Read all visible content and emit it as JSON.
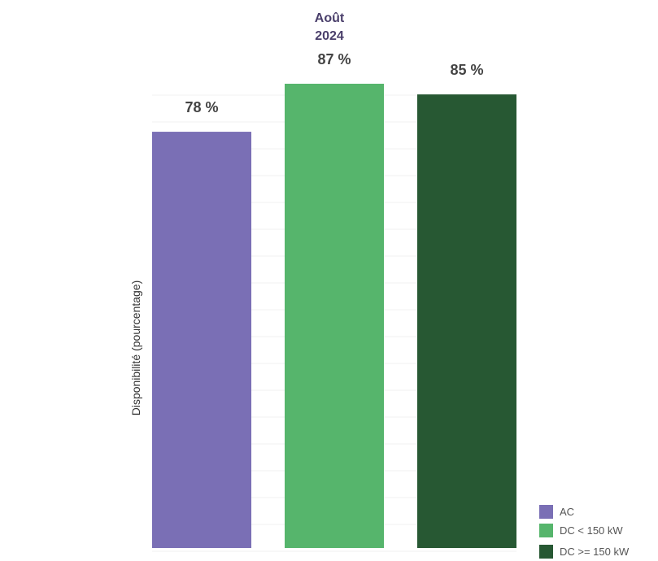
{
  "chart_data": {
    "type": "bar",
    "title_line1": "Août",
    "title_line2": "2024",
    "xlabel": "",
    "ylabel": "Disponibilité (pourcentage)",
    "ylim": [
      0,
      87
    ],
    "grid": "horizontal",
    "legend_position": "bottom-right",
    "categories": [
      "AC",
      "DC < 150 kW",
      "DC >= 150 kW"
    ],
    "values": [
      78,
      87,
      85
    ],
    "value_labels": [
      "78 %",
      "87 %",
      "85 %"
    ],
    "colors": [
      "#7a6fb5",
      "#56b56c",
      "#275833"
    ]
  }
}
